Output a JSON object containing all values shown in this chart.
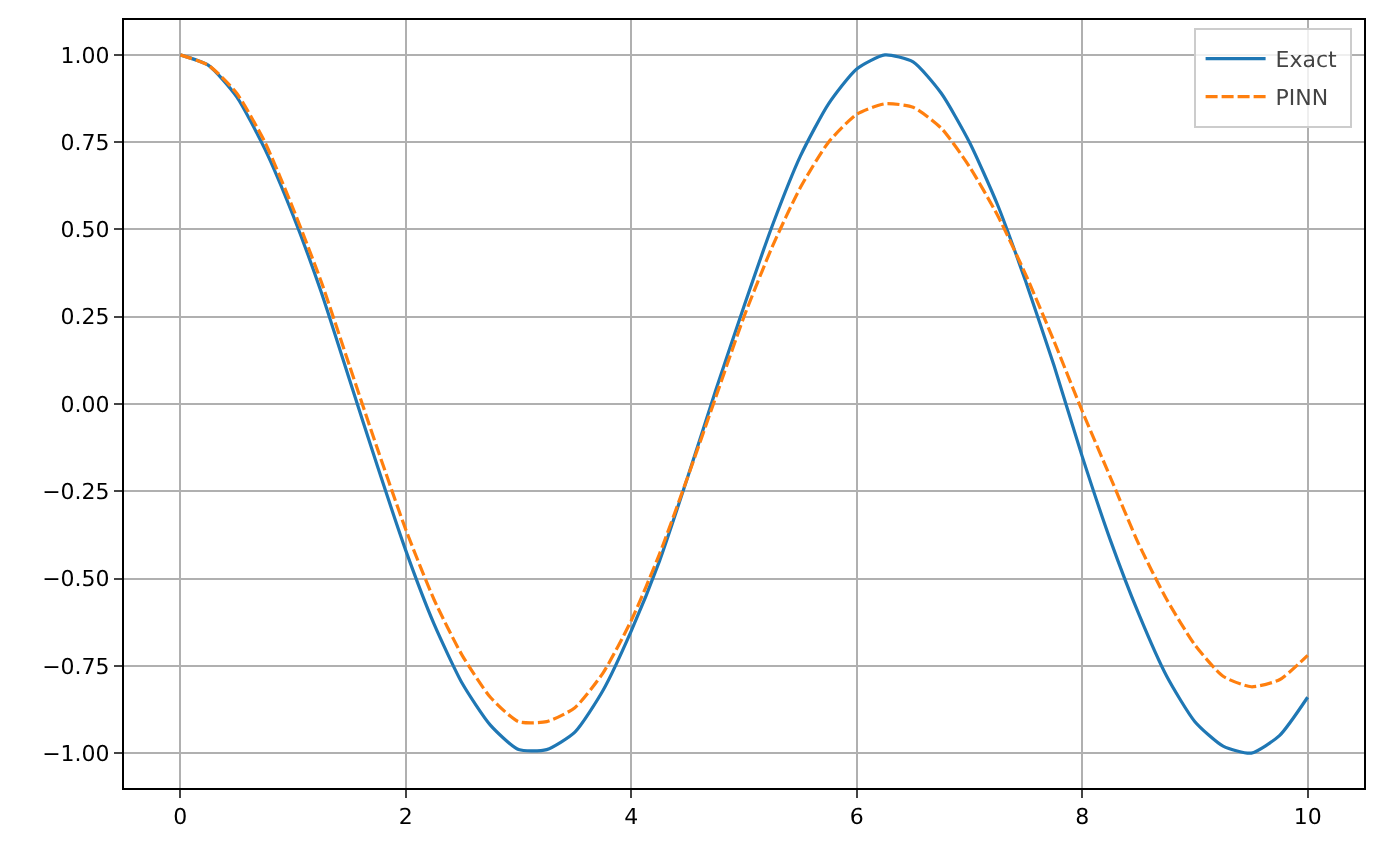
{
  "chart_data": {
    "type": "line",
    "x": [
      0,
      0.25,
      0.5,
      0.75,
      1,
      1.25,
      1.5,
      1.75,
      2,
      2.25,
      2.5,
      2.75,
      3,
      3.25,
      3.5,
      3.75,
      4,
      4.25,
      4.5,
      4.75,
      5,
      5.25,
      5.5,
      5.75,
      6,
      6.25,
      6.5,
      6.75,
      7,
      7.25,
      7.5,
      7.75,
      8,
      8.25,
      8.5,
      8.75,
      9,
      9.25,
      9.5,
      9.75,
      10
    ],
    "series": [
      {
        "name": "Exact",
        "color": "#1f77b4",
        "line_style": "solid",
        "values": [
          1.0,
          0.97,
          0.88,
          0.73,
          0.54,
          0.32,
          0.07,
          -0.18,
          -0.42,
          -0.63,
          -0.8,
          -0.92,
          -0.99,
          -0.99,
          -0.94,
          -0.82,
          -0.65,
          -0.45,
          -0.21,
          0.04,
          0.28,
          0.51,
          0.71,
          0.86,
          0.96,
          1.0,
          0.98,
          0.89,
          0.75,
          0.57,
          0.35,
          0.11,
          -0.15,
          -0.39,
          -0.6,
          -0.78,
          -0.91,
          -0.98,
          -1.0,
          -0.95,
          -0.84
        ]
      },
      {
        "name": "PINN",
        "color": "#ff7f0e",
        "line_style": "dashed",
        "values": [
          1.0,
          0.97,
          0.89,
          0.75,
          0.56,
          0.35,
          0.11,
          -0.13,
          -0.36,
          -0.56,
          -0.72,
          -0.84,
          -0.91,
          -0.91,
          -0.87,
          -0.77,
          -0.62,
          -0.43,
          -0.21,
          0.02,
          0.25,
          0.45,
          0.62,
          0.75,
          0.83,
          0.86,
          0.85,
          0.79,
          0.68,
          0.54,
          0.37,
          0.18,
          -0.02,
          -0.21,
          -0.4,
          -0.56,
          -0.69,
          -0.78,
          -0.81,
          -0.79,
          -0.72
        ]
      }
    ],
    "xlim": [
      -0.5,
      10.5
    ],
    "xticks": [
      0,
      2,
      4,
      6,
      8,
      10
    ],
    "ylim": [
      -1.1,
      1.1
    ],
    "yticks": [
      {
        "value": -1,
        "label": "−1.00"
      },
      {
        "value": -0.75,
        "label": "−0.75"
      },
      {
        "value": -0.5,
        "label": "−0.50"
      },
      {
        "value": -0.25,
        "label": "−0.25"
      },
      {
        "value": 0,
        "label": "0.00"
      },
      {
        "value": 0.25,
        "label": "0.25"
      },
      {
        "value": 0.5,
        "label": "0.50"
      },
      {
        "value": 0.75,
        "label": "0.75"
      },
      {
        "value": 1,
        "label": "1.00"
      }
    ],
    "grid": true,
    "legend": "top right"
  }
}
